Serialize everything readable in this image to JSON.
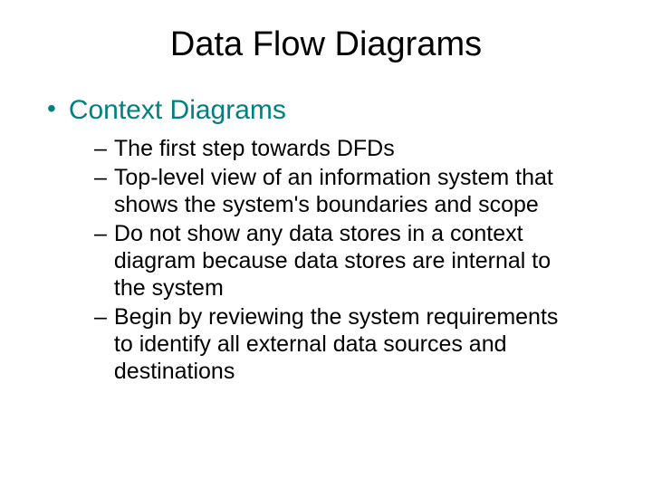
{
  "slide": {
    "title": "Data Flow Diagrams",
    "title_color": "#000000",
    "title_fontsize": 38,
    "background_color": "#ffffff",
    "level1_color": "#008080",
    "level1_fontsize": 30,
    "level2_color": "#000000",
    "level2_fontsize": 25,
    "bullets": {
      "level1": {
        "marker": "•",
        "text": "Context Diagrams"
      },
      "level2": [
        {
          "marker": "–",
          "text": "The first step towards DFDs"
        },
        {
          "marker": "–",
          "text": "Top-level view of an information system that shows the system's boundaries and scope"
        },
        {
          "marker": "–",
          "text": "Do not show any data stores in a context diagram because data stores are internal to the system"
        },
        {
          "marker": "–",
          "text": "Begin by reviewing the system requirements to identify all external data sources and destinations"
        }
      ]
    }
  }
}
